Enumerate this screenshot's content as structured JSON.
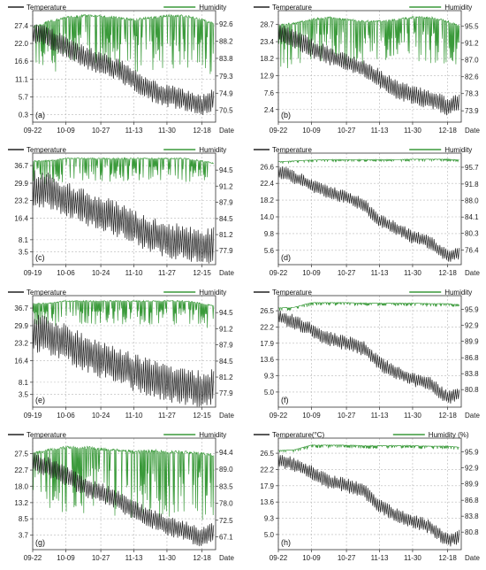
{
  "figure": {
    "panels_layout": "4 rows x 2 columns",
    "temperature_color": "#222222",
    "humidity_color": "#3a9a3a"
  },
  "chart_data": [
    {
      "panel": "(a)",
      "type": "line",
      "xlabel": "Date",
      "x_ticks": [
        "09-22",
        "10-09",
        "10-27",
        "11-13",
        "11-30",
        "12-18"
      ],
      "legend": [
        "Temperature",
        "Humidity"
      ],
      "y_left_ticks": [
        0.3,
        5.7,
        11.1,
        16.6,
        22.0,
        27.4
      ],
      "y_right_ticks": [
        70.5,
        74.9,
        79.3,
        83.8,
        88.2,
        92.6
      ],
      "ylim_left": [
        -2.0,
        32.0
      ],
      "ylim_right": [
        67.5,
        96.0
      ],
      "series": [
        {
          "name": "Temperature",
          "x": [
            "09-22",
            "09-30",
            "10-09",
            "10-18",
            "10-27",
            "11-05",
            "11-13",
            "11-22",
            "11-30",
            "12-09",
            "12-18",
            "12-24"
          ],
          "y": [
            25.0,
            24.0,
            21.0,
            18.0,
            16.0,
            14.0,
            11.0,
            7.5,
            6.0,
            5.0,
            3.0,
            5.0
          ],
          "daily_range": 7.0
        },
        {
          "name": "Humidity",
          "x": [
            "09-22",
            "09-30",
            "10-09",
            "10-18",
            "10-27",
            "11-05",
            "11-13",
            "11-22",
            "11-30",
            "12-09",
            "12-18",
            "12-24"
          ],
          "y": [
            92.0,
            93.5,
            94.5,
            95.0,
            95.0,
            94.5,
            94.0,
            94.5,
            95.0,
            95.0,
            94.0,
            93.0
          ],
          "dip_depth": 14.0
        }
      ]
    },
    {
      "panel": "(b)",
      "type": "line",
      "xlabel": "Date",
      "x_ticks": [
        "09-22",
        "10-09",
        "10-27",
        "11-13",
        "11-30",
        "12-18"
      ],
      "legend": [
        "Temperature",
        "Humidity"
      ],
      "y_left_ticks": [
        2.4,
        7.6,
        12.9,
        18.2,
        23.4,
        28.7
      ],
      "y_right_ticks": [
        73.9,
        78.3,
        82.6,
        87.0,
        91.2,
        95.5
      ],
      "ylim_left": [
        -1.5,
        33.0
      ],
      "ylim_right": [
        71.0,
        99.5
      ],
      "series": [
        {
          "name": "Temperature",
          "x": [
            "09-22",
            "09-30",
            "10-09",
            "10-18",
            "10-27",
            "11-05",
            "11-13",
            "11-22",
            "11-30",
            "12-09",
            "12-18",
            "12-24"
          ],
          "y": [
            26.0,
            24.5,
            21.5,
            19.0,
            17.0,
            15.0,
            12.0,
            8.5,
            7.0,
            5.5,
            3.5,
            4.5
          ],
          "daily_range": 6.0
        },
        {
          "name": "Humidity",
          "x": [
            "09-22",
            "09-30",
            "10-09",
            "10-18",
            "10-27",
            "11-05",
            "11-13",
            "11-22",
            "11-30",
            "12-09",
            "12-18",
            "12-24"
          ],
          "y": [
            96.0,
            96.5,
            97.5,
            98.0,
            97.5,
            97.0,
            97.0,
            97.5,
            98.0,
            98.0,
            97.0,
            96.0
          ],
          "dip_depth": 12.0
        }
      ]
    },
    {
      "panel": "(c)",
      "type": "line",
      "xlabel": "Date",
      "x_ticks": [
        "09-19",
        "10-06",
        "10-24",
        "11-10",
        "11-27",
        "12-15"
      ],
      "legend": [
        "Temperature",
        "Humidity"
      ],
      "y_left_ticks": [
        3.5,
        8.1,
        16.4,
        23.2,
        29.9,
        36.7
      ],
      "y_right_ticks": [
        77.9,
        81.2,
        84.5,
        87.9,
        91.2,
        94.5
      ],
      "ylim_left": [
        -1.5,
        41.5
      ],
      "ylim_right": [
        75.0,
        98.0
      ],
      "series": [
        {
          "name": "Temperature",
          "x": [
            "09-19",
            "09-27",
            "10-06",
            "10-15",
            "10-24",
            "11-02",
            "11-10",
            "11-19",
            "11-27",
            "12-06",
            "12-15",
            "12-21"
          ],
          "y": [
            28.0,
            27.0,
            24.0,
            21.0,
            18.0,
            16.0,
            13.0,
            10.0,
            8.0,
            7.0,
            5.0,
            6.0
          ],
          "daily_range": 14.0
        },
        {
          "name": "Humidity",
          "x": [
            "09-19",
            "09-27",
            "10-06",
            "10-15",
            "10-24",
            "11-02",
            "11-10",
            "11-19",
            "11-27",
            "12-06",
            "12-15",
            "12-21"
          ],
          "y": [
            96.5,
            96.5,
            97.0,
            97.0,
            97.0,
            97.0,
            97.0,
            97.0,
            97.0,
            97.0,
            96.5,
            96.0
          ],
          "dip_depth": 5.0
        }
      ]
    },
    {
      "panel": "(d)",
      "type": "line",
      "xlabel": "Date",
      "x_ticks": [
        "09-22",
        "10-09",
        "10-27",
        "11-13",
        "11-30",
        "12-18"
      ],
      "legend": [
        "Temperature",
        "Humidity"
      ],
      "y_left_ticks": [
        5.6,
        9.8,
        14.0,
        18.2,
        22.4,
        26.6
      ],
      "y_right_ticks": [
        76.4,
        80.3,
        84.1,
        88.0,
        91.8,
        95.7
      ],
      "ylim_left": [
        2.0,
        30.0
      ],
      "ylim_right": [
        73.0,
        99.0
      ],
      "series": [
        {
          "name": "Temperature",
          "x": [
            "09-22",
            "09-30",
            "10-09",
            "10-18",
            "10-27",
            "11-05",
            "11-13",
            "11-22",
            "11-30",
            "12-09",
            "12-18",
            "12-24"
          ],
          "y": [
            25.5,
            24.0,
            22.0,
            20.0,
            19.0,
            17.0,
            13.0,
            11.0,
            9.0,
            7.5,
            4.0,
            5.0
          ],
          "daily_range": 3.5
        },
        {
          "name": "Humidity",
          "x": [
            "09-22",
            "09-30",
            "10-09",
            "10-18",
            "10-27",
            "11-05",
            "11-13",
            "11-22",
            "11-30",
            "12-09",
            "12-18",
            "12-24"
          ],
          "y": [
            97.0,
            97.2,
            97.4,
            97.5,
            97.5,
            97.5,
            97.5,
            97.5,
            97.6,
            97.6,
            97.6,
            97.4
          ],
          "dip_depth": 0.5
        }
      ]
    },
    {
      "panel": "(e)",
      "type": "line",
      "xlabel": "Date",
      "x_ticks": [
        "09-19",
        "10-06",
        "10-24",
        "11-10",
        "11-27",
        "12-15"
      ],
      "legend": [
        "Temperature",
        "Humidity"
      ],
      "y_left_ticks": [
        3.5,
        8.1,
        16.4,
        23.2,
        29.9,
        36.7
      ],
      "y_right_ticks": [
        77.9,
        81.2,
        84.5,
        87.9,
        91.2,
        94.5
      ],
      "ylim_left": [
        -1.5,
        41.5
      ],
      "ylim_right": [
        75.0,
        98.0
      ],
      "series": [
        {
          "name": "Temperature",
          "x": [
            "09-19",
            "09-27",
            "10-06",
            "10-15",
            "10-24",
            "11-02",
            "11-10",
            "11-19",
            "11-27",
            "12-06",
            "12-15",
            "12-21"
          ],
          "y": [
            27.0,
            26.0,
            23.0,
            20.0,
            17.0,
            15.0,
            12.0,
            9.5,
            7.5,
            6.5,
            5.0,
            6.0
          ],
          "daily_range": 15.0
        },
        {
          "name": "Humidity",
          "x": [
            "09-19",
            "09-27",
            "10-06",
            "10-15",
            "10-24",
            "11-02",
            "11-10",
            "11-19",
            "11-27",
            "12-06",
            "12-15",
            "12-21"
          ],
          "y": [
            96.5,
            96.5,
            97.0,
            97.0,
            97.0,
            97.0,
            97.0,
            97.0,
            97.0,
            97.0,
            96.5,
            96.0
          ],
          "dip_depth": 5.0
        }
      ]
    },
    {
      "panel": "(f)",
      "type": "line",
      "xlabel": "Date",
      "x_ticks": [
        "09-22",
        "10-09",
        "10-27",
        "11-13",
        "11-30",
        "12-18"
      ],
      "legend": [
        "Temperature",
        "Humidity"
      ],
      "y_left_ticks": [
        5.0,
        9.3,
        13.6,
        17.9,
        22.2,
        26.5
      ],
      "y_right_ticks": [
        80.8,
        83.8,
        86.8,
        89.9,
        92.9,
        95.9
      ],
      "ylim_left": [
        1.0,
        30.5
      ],
      "ylim_right": [
        77.5,
        98.5
      ],
      "series": [
        {
          "name": "Temperature",
          "x": [
            "09-22",
            "09-30",
            "10-09",
            "10-18",
            "10-27",
            "11-05",
            "11-13",
            "11-22",
            "11-30",
            "12-09",
            "12-18",
            "12-24"
          ],
          "y": [
            25.0,
            23.5,
            21.5,
            19.0,
            18.0,
            16.5,
            12.5,
            10.0,
            8.5,
            7.0,
            3.5,
            4.5
          ],
          "daily_range": 4.0
        },
        {
          "name": "Humidity",
          "x": [
            "09-22",
            "09-30",
            "10-09",
            "10-18",
            "10-27",
            "11-05",
            "11-13",
            "11-22",
            "11-30",
            "12-09",
            "12-18",
            "12-24"
          ],
          "y": [
            96.2,
            96.3,
            97.2,
            97.2,
            97.2,
            97.1,
            97.1,
            97.1,
            97.1,
            97.0,
            97.0,
            96.8
          ],
          "dip_depth": 0.6
        }
      ]
    },
    {
      "panel": "(g)",
      "type": "line",
      "xlabel": "Date",
      "x_ticks": [
        "09-22",
        "10-09",
        "10-27",
        "11-13",
        "11-30",
        "12-18"
      ],
      "legend": [
        "Temperature",
        "Humidity"
      ],
      "y_left_ticks": [
        3.7,
        8.5,
        13.2,
        18.0,
        22.7,
        27.5
      ],
      "y_right_ticks": [
        67.1,
        72.5,
        78.0,
        83.5,
        89.0,
        94.4
      ],
      "ylim_left": [
        -0.5,
        32.0
      ],
      "ylim_right": [
        63.0,
        99.0
      ],
      "series": [
        {
          "name": "Temperature",
          "x": [
            "09-22",
            "09-30",
            "10-09",
            "10-18",
            "10-27",
            "11-05",
            "11-13",
            "11-22",
            "11-30",
            "12-09",
            "12-18",
            "12-24"
          ],
          "y": [
            25.0,
            23.5,
            21.0,
            18.0,
            16.0,
            14.0,
            11.0,
            8.5,
            6.5,
            5.0,
            3.0,
            4.5
          ],
          "daily_range": 6.0
        },
        {
          "name": "Humidity",
          "x": [
            "09-22",
            "09-30",
            "10-09",
            "10-18",
            "10-27",
            "11-05",
            "11-13",
            "11-22",
            "11-30",
            "12-09",
            "12-18",
            "12-24"
          ],
          "y": [
            94.5,
            95.5,
            96.5,
            96.5,
            96.0,
            95.5,
            95.0,
            95.5,
            95.0,
            95.0,
            94.5,
            94.0
          ],
          "dip_depth": 22.0
        }
      ]
    },
    {
      "panel": "(h)",
      "type": "line",
      "xlabel": "Date",
      "x_ticks": [
        "09-22",
        "10-09",
        "10-27",
        "11-13",
        "11-30",
        "12-18"
      ],
      "legend": [
        "Temperature(°C)",
        "Humidity (%)"
      ],
      "y_left_ticks": [
        5.0,
        9.3,
        13.6,
        17.9,
        22.2,
        26.5
      ],
      "y_right_ticks": [
        80.8,
        83.8,
        86.8,
        89.9,
        92.9,
        95.9
      ],
      "ylim_left": [
        1.0,
        30.5
      ],
      "ylim_right": [
        77.5,
        98.5
      ],
      "series": [
        {
          "name": "Temperature(°C)",
          "x": [
            "09-22",
            "09-30",
            "10-09",
            "10-18",
            "10-27",
            "11-05",
            "11-13",
            "11-22",
            "11-30",
            "12-09",
            "12-18",
            "12-24"
          ],
          "y": [
            25.0,
            23.5,
            21.5,
            19.0,
            18.0,
            16.5,
            12.5,
            10.0,
            8.5,
            7.0,
            3.5,
            4.5
          ],
          "daily_range": 4.0
        },
        {
          "name": "Humidity (%)",
          "x": [
            "09-22",
            "09-30",
            "10-09",
            "10-18",
            "10-27",
            "11-05",
            "11-13",
            "11-22",
            "11-30",
            "12-09",
            "12-18",
            "12-24"
          ],
          "y": [
            96.2,
            96.3,
            97.2,
            97.2,
            97.2,
            97.1,
            97.1,
            97.1,
            97.1,
            97.0,
            97.0,
            96.8
          ],
          "dip_depth": 0.6
        }
      ]
    }
  ]
}
